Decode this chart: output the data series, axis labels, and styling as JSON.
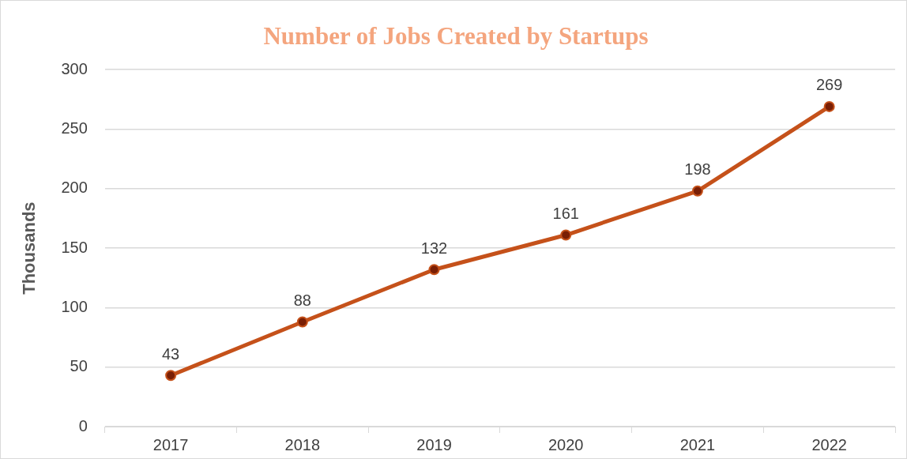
{
  "chart_data": {
    "type": "line",
    "title": "Number of Jobs Created by Startups",
    "ylabel": "Thousands",
    "categories": [
      "2017",
      "2018",
      "2019",
      "2020",
      "2021",
      "2022"
    ],
    "series": [
      {
        "color": "#c5511a",
        "values": [
          43,
          88,
          132,
          161,
          198,
          269
        ]
      }
    ],
    "ylim": [
      0,
      300
    ],
    "yticks": [
      0,
      50,
      100,
      150,
      200,
      250,
      300
    ],
    "grid": "y",
    "marker": "circle",
    "data_labels": true
  }
}
